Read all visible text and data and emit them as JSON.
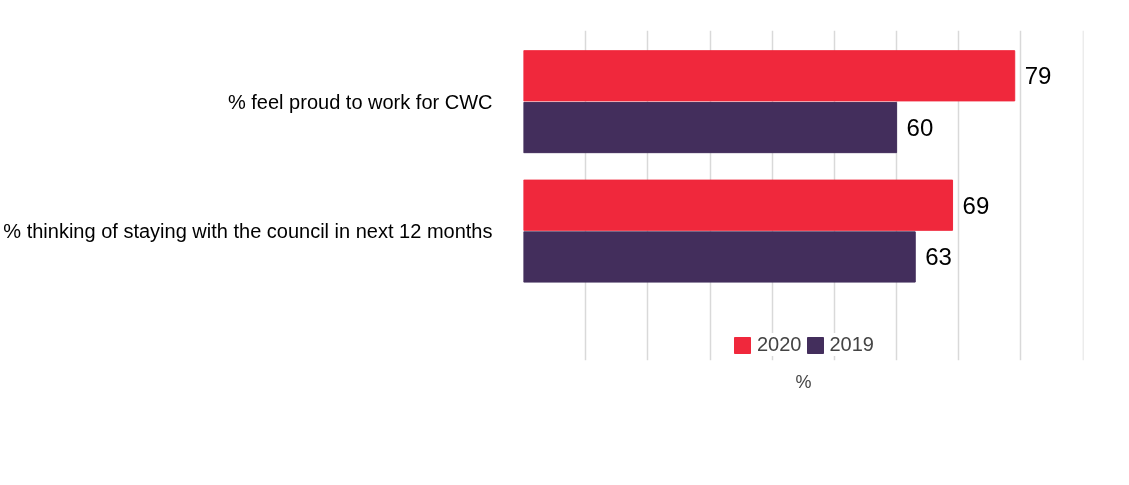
{
  "chart_data": {
    "type": "bar",
    "orientation": "horizontal",
    "categories": [
      "% feel proud to work for CWC",
      "% thinking of staying with the council in next 12 months"
    ],
    "series": [
      {
        "name": "2020",
        "color": "#f0283c",
        "values": [
          79,
          69
        ]
      },
      {
        "name": "2019",
        "color": "#432e5c",
        "values": [
          60,
          63
        ]
      }
    ],
    "xlabel": "%",
    "grid": "x",
    "data_labels": true,
    "legend": "bottom",
    "tick_labels": "y"
  }
}
